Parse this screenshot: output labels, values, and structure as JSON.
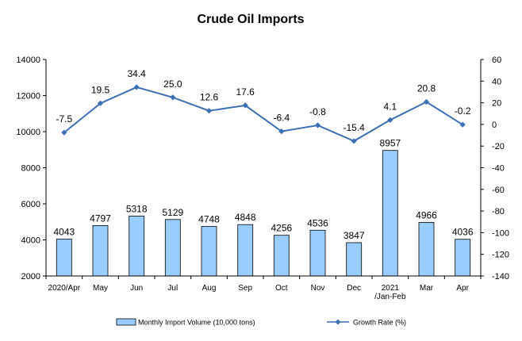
{
  "chart_data": {
    "type": "bar",
    "title": "Crude Oil Imports",
    "categories": [
      [
        "2020/Apr"
      ],
      [
        "May"
      ],
      [
        "Jun"
      ],
      [
        "Jul"
      ],
      [
        "Aug"
      ],
      [
        "Sep"
      ],
      [
        "Oct"
      ],
      [
        "Nov"
      ],
      [
        "Dec"
      ],
      [
        "2021",
        "/Jan-Feb"
      ],
      [
        "Mar"
      ],
      [
        "Apr"
      ]
    ],
    "series": [
      {
        "name": "Monthly Import Volume (10,000 tons)",
        "type": "bar",
        "axis": "left",
        "color": "#99ccff",
        "values": [
          4043,
          4797,
          5318,
          5129,
          4748,
          4848,
          4256,
          4536,
          3847,
          8957,
          4966,
          4036
        ],
        "labels": [
          "4043",
          "4797",
          "5318",
          "5129",
          "4748",
          "4848",
          "4256",
          "4536",
          "3847",
          "8957",
          "4966",
          "4036"
        ]
      },
      {
        "name": "Growth Rate (%)",
        "type": "line",
        "axis": "right",
        "color": "#3a6fb5",
        "values": [
          -7.5,
          19.5,
          34.4,
          25.0,
          12.6,
          17.6,
          -6.4,
          -0.8,
          -15.4,
          4.1,
          20.8,
          -0.2
        ],
        "labels": [
          "-7.5",
          "19.5",
          "34.4",
          "25.0",
          "12.6",
          "17.6",
          "-6.4",
          "-0.8",
          "-15.4",
          "4.1",
          "20.8",
          "-0.2"
        ]
      }
    ],
    "left_axis": {
      "ylim": [
        2000,
        14000
      ],
      "ticks": [
        2000,
        4000,
        6000,
        8000,
        10000,
        12000,
        14000
      ]
    },
    "right_axis": {
      "ylim": [
        -140,
        60
      ],
      "ticks": [
        -140,
        -120,
        -100,
        -80,
        -60,
        -40,
        -20,
        0,
        20,
        40,
        60
      ]
    },
    "grid": false,
    "legend_position": "bottom"
  }
}
